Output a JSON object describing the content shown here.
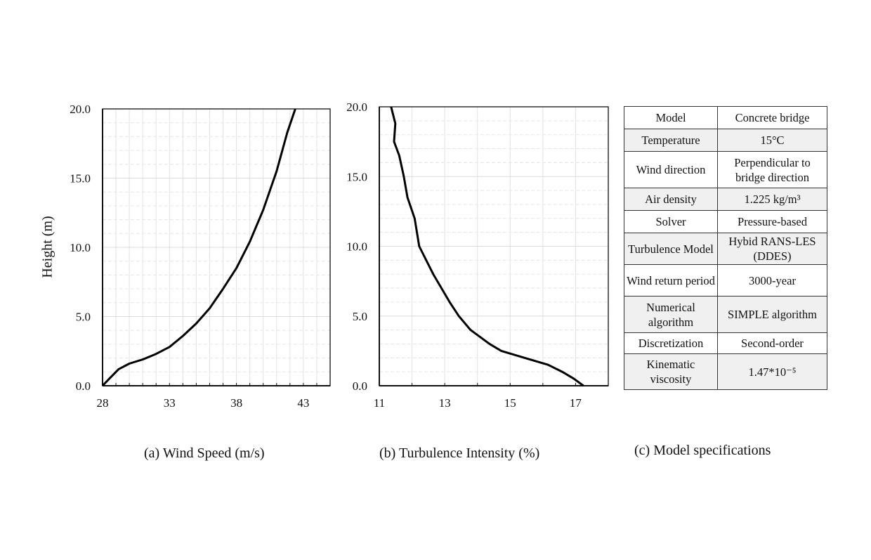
{
  "chart_data": [
    {
      "type": "line",
      "xlabel": "(a) Wind Speed (m/s)",
      "ylabel": "Height (m)",
      "xlim": [
        28,
        45
      ],
      "ylim": [
        0,
        20
      ],
      "xticks": [
        "28",
        "33",
        "38",
        "43"
      ],
      "yticks": [
        "0.0",
        "5.0",
        "10.0",
        "15.0",
        "20.0"
      ],
      "grid": true,
      "x": [
        28,
        28.5,
        29.2,
        30,
        31,
        32,
        33,
        34,
        35,
        36,
        37,
        38,
        39,
        40,
        41,
        41.8,
        42.4
      ],
      "y": [
        0,
        0.5,
        1.2,
        1.6,
        1.9,
        2.3,
        2.8,
        3.6,
        4.5,
        5.6,
        7.0,
        8.5,
        10.4,
        12.7,
        15.5,
        18.3,
        20
      ]
    },
    {
      "type": "line",
      "xlabel": "(b) Turbulence Intensity (%)",
      "ylabel": "",
      "xlim": [
        11,
        18
      ],
      "ylim": [
        0,
        20
      ],
      "xticks": [
        "11",
        "13",
        "15",
        "17"
      ],
      "yticks": [
        "0.0",
        "5.0",
        "10.0",
        "15.0",
        "20.0"
      ],
      "grid": true,
      "x": [
        17.24,
        16.95,
        16.59,
        16.16,
        15.44,
        14.73,
        14.37,
        13.79,
        13.43,
        13.15,
        12.65,
        12.22,
        12.08,
        11.86,
        11.75,
        11.61,
        11.45,
        11.49,
        11.36
      ],
      "y": [
        0,
        0.5,
        1,
        1.5,
        2,
        2.5,
        3,
        4,
        5,
        6,
        8,
        10,
        12,
        13.5,
        15,
        16.5,
        17.5,
        18.8,
        20
      ]
    }
  ],
  "table": {
    "caption": "(c) Model specifications",
    "rows": [
      [
        "Model",
        "Concrete bridge"
      ],
      [
        "Temperature",
        "15°C"
      ],
      [
        "Wind direction",
        "Perpendicular to bridge direction"
      ],
      [
        "Air density",
        "1.225 kg/m³"
      ],
      [
        "Solver",
        "Pressure-based"
      ],
      [
        "Turbulence Model",
        "Hybid RANS-LES (DDES)"
      ],
      [
        "Wind return period",
        "3000-year"
      ],
      [
        "Numerical algorithm",
        "SIMPLE algorithm"
      ],
      [
        "Discretization",
        "Second-order"
      ],
      [
        "Kinematic viscosity",
        "1.47*10⁻⁵"
      ]
    ]
  }
}
